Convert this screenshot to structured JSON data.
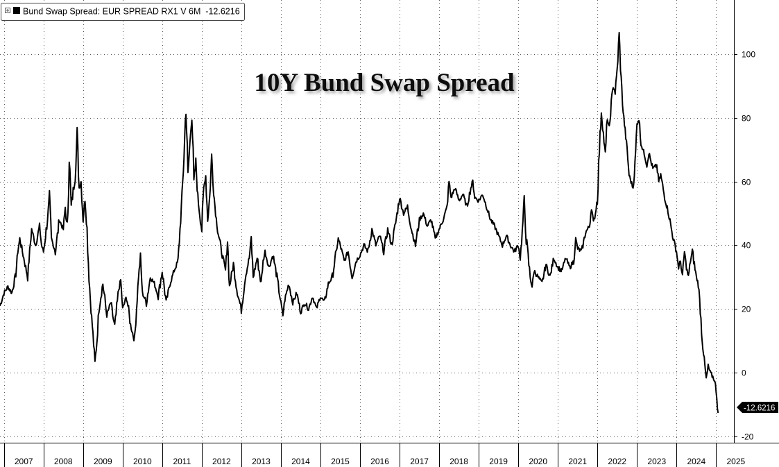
{
  "chart_data": {
    "type": "line",
    "title": "10Y Bund Swap Spread",
    "legend": {
      "expand_icon": "plus-box-icon",
      "swatch_color": "#000000",
      "label": "Bund Swap Spread: EUR SPREAD RX1 V 6M  -12.6216"
    },
    "last_value_label": "-12.6216",
    "x_tick_labels": [
      "2007",
      "2008",
      "2009",
      "2010",
      "2011",
      "2012",
      "2013",
      "2014",
      "2015",
      "2016",
      "2017",
      "2018",
      "2019",
      "2020",
      "2021",
      "2022",
      "2023",
      "2024",
      "2025"
    ],
    "y_ticks": [
      100,
      80,
      60,
      40,
      20,
      0,
      -20
    ],
    "y_tick_labels": [
      "100",
      "80",
      "60",
      "40",
      "20",
      "0",
      "-20"
    ],
    "xlim": [
      2006.9,
      2025.45
    ],
    "ylim": [
      -22,
      117
    ],
    "grid": true,
    "series": [
      {
        "color": "#000000",
        "points": [
          [
            2006.9,
            21
          ],
          [
            2007.0,
            25
          ],
          [
            2007.1,
            27
          ],
          [
            2007.2,
            25
          ],
          [
            2007.3,
            31
          ],
          [
            2007.35,
            38
          ],
          [
            2007.4,
            42
          ],
          [
            2007.5,
            36
          ],
          [
            2007.6,
            30
          ],
          [
            2007.65,
            38
          ],
          [
            2007.7,
            45
          ],
          [
            2007.8,
            40
          ],
          [
            2007.9,
            46
          ],
          [
            2007.95,
            40
          ],
          [
            2008.0,
            38
          ],
          [
            2008.1,
            48
          ],
          [
            2008.15,
            55
          ],
          [
            2008.2,
            42
          ],
          [
            2008.3,
            38
          ],
          [
            2008.4,
            48
          ],
          [
            2008.5,
            45
          ],
          [
            2008.55,
            52
          ],
          [
            2008.6,
            44
          ],
          [
            2008.65,
            68
          ],
          [
            2008.7,
            52
          ],
          [
            2008.8,
            62
          ],
          [
            2008.85,
            75
          ],
          [
            2008.9,
            58
          ],
          [
            2008.95,
            60
          ],
          [
            2009.0,
            48
          ],
          [
            2009.05,
            55
          ],
          [
            2009.1,
            45
          ],
          [
            2009.15,
            30
          ],
          [
            2009.2,
            20
          ],
          [
            2009.25,
            12
          ],
          [
            2009.3,
            3
          ],
          [
            2009.35,
            10
          ],
          [
            2009.4,
            20
          ],
          [
            2009.5,
            28
          ],
          [
            2009.6,
            18
          ],
          [
            2009.7,
            22
          ],
          [
            2009.8,
            14
          ],
          [
            2009.9,
            26
          ],
          [
            2009.95,
            29
          ],
          [
            2010.0,
            20
          ],
          [
            2010.1,
            24
          ],
          [
            2010.2,
            15
          ],
          [
            2010.3,
            10
          ],
          [
            2010.35,
            20
          ],
          [
            2010.4,
            30
          ],
          [
            2010.45,
            36
          ],
          [
            2010.5,
            25
          ],
          [
            2010.6,
            22
          ],
          [
            2010.7,
            30
          ],
          [
            2010.8,
            28
          ],
          [
            2010.9,
            24
          ],
          [
            2011.0,
            32
          ],
          [
            2011.1,
            22
          ],
          [
            2011.2,
            28
          ],
          [
            2011.3,
            32
          ],
          [
            2011.4,
            35
          ],
          [
            2011.45,
            45
          ],
          [
            2011.5,
            55
          ],
          [
            2011.55,
            68
          ],
          [
            2011.6,
            84
          ],
          [
            2011.65,
            62
          ],
          [
            2011.7,
            72
          ],
          [
            2011.75,
            82
          ],
          [
            2011.8,
            60
          ],
          [
            2011.85,
            66
          ],
          [
            2011.9,
            55
          ],
          [
            2012.0,
            45
          ],
          [
            2012.05,
            58
          ],
          [
            2012.1,
            62
          ],
          [
            2012.15,
            48
          ],
          [
            2012.2,
            55
          ],
          [
            2012.25,
            68
          ],
          [
            2012.3,
            57
          ],
          [
            2012.35,
            50
          ],
          [
            2012.4,
            45
          ],
          [
            2012.5,
            38
          ],
          [
            2012.6,
            32
          ],
          [
            2012.65,
            42
          ],
          [
            2012.7,
            27
          ],
          [
            2012.8,
            34
          ],
          [
            2012.9,
            25
          ],
          [
            2013.0,
            20
          ],
          [
            2013.1,
            30
          ],
          [
            2013.2,
            36
          ],
          [
            2013.25,
            42
          ],
          [
            2013.3,
            30
          ],
          [
            2013.4,
            36
          ],
          [
            2013.5,
            28
          ],
          [
            2013.55,
            35
          ],
          [
            2013.6,
            38
          ],
          [
            2013.7,
            33
          ],
          [
            2013.8,
            37
          ],
          [
            2013.9,
            30
          ],
          [
            2014.0,
            22
          ],
          [
            2014.05,
            18
          ],
          [
            2014.1,
            23
          ],
          [
            2014.2,
            28
          ],
          [
            2014.3,
            22
          ],
          [
            2014.4,
            25
          ],
          [
            2014.5,
            19
          ],
          [
            2014.6,
            22
          ],
          [
            2014.7,
            20
          ],
          [
            2014.8,
            24
          ],
          [
            2014.9,
            20
          ],
          [
            2015.0,
            24
          ],
          [
            2015.1,
            22
          ],
          [
            2015.2,
            28
          ],
          [
            2015.3,
            30
          ],
          [
            2015.4,
            38
          ],
          [
            2015.45,
            42
          ],
          [
            2015.5,
            40
          ],
          [
            2015.6,
            35
          ],
          [
            2015.7,
            38
          ],
          [
            2015.8,
            30
          ],
          [
            2015.9,
            35
          ],
          [
            2016.0,
            37
          ],
          [
            2016.1,
            40
          ],
          [
            2016.2,
            38
          ],
          [
            2016.3,
            45
          ],
          [
            2016.4,
            40
          ],
          [
            2016.5,
            43
          ],
          [
            2016.6,
            38
          ],
          [
            2016.7,
            45
          ],
          [
            2016.8,
            40
          ],
          [
            2016.9,
            47
          ],
          [
            2017.0,
            55
          ],
          [
            2017.1,
            50
          ],
          [
            2017.2,
            52
          ],
          [
            2017.3,
            45
          ],
          [
            2017.4,
            40
          ],
          [
            2017.5,
            48
          ],
          [
            2017.6,
            50
          ],
          [
            2017.7,
            46
          ],
          [
            2017.8,
            48
          ],
          [
            2017.9,
            42
          ],
          [
            2018.0,
            45
          ],
          [
            2018.1,
            48
          ],
          [
            2018.2,
            52
          ],
          [
            2018.25,
            60
          ],
          [
            2018.3,
            55
          ],
          [
            2018.4,
            58
          ],
          [
            2018.5,
            54
          ],
          [
            2018.6,
            56
          ],
          [
            2018.7,
            52
          ],
          [
            2018.8,
            58
          ],
          [
            2018.85,
            60
          ],
          [
            2018.9,
            55
          ],
          [
            2019.0,
            54
          ],
          [
            2019.1,
            56
          ],
          [
            2019.2,
            52
          ],
          [
            2019.3,
            48
          ],
          [
            2019.4,
            46
          ],
          [
            2019.5,
            43
          ],
          [
            2019.6,
            40
          ],
          [
            2019.7,
            43
          ],
          [
            2019.8,
            40
          ],
          [
            2019.9,
            38
          ],
          [
            2020.0,
            40
          ],
          [
            2020.05,
            36
          ],
          [
            2020.1,
            44
          ],
          [
            2020.15,
            54
          ],
          [
            2020.2,
            42
          ],
          [
            2020.3,
            30
          ],
          [
            2020.35,
            27
          ],
          [
            2020.4,
            32
          ],
          [
            2020.5,
            30
          ],
          [
            2020.6,
            28
          ],
          [
            2020.7,
            34
          ],
          [
            2020.8,
            30
          ],
          [
            2020.9,
            36
          ],
          [
            2021.0,
            33
          ],
          [
            2021.1,
            32
          ],
          [
            2021.2,
            36
          ],
          [
            2021.3,
            33
          ],
          [
            2021.4,
            35
          ],
          [
            2021.45,
            42
          ],
          [
            2021.5,
            39
          ],
          [
            2021.6,
            38
          ],
          [
            2021.7,
            44
          ],
          [
            2021.8,
            46
          ],
          [
            2021.85,
            52
          ],
          [
            2021.9,
            47
          ],
          [
            2021.95,
            50
          ],
          [
            2022.0,
            55
          ],
          [
            2022.05,
            70
          ],
          [
            2022.1,
            82
          ],
          [
            2022.15,
            75
          ],
          [
            2022.2,
            68
          ],
          [
            2022.25,
            80
          ],
          [
            2022.3,
            76
          ],
          [
            2022.35,
            85
          ],
          [
            2022.4,
            90
          ],
          [
            2022.45,
            88
          ],
          [
            2022.5,
            95
          ],
          [
            2022.55,
            106
          ],
          [
            2022.6,
            92
          ],
          [
            2022.65,
            82
          ],
          [
            2022.7,
            76
          ],
          [
            2022.75,
            70
          ],
          [
            2022.8,
            62
          ],
          [
            2022.9,
            58
          ],
          [
            2022.95,
            65
          ],
          [
            2023.0,
            78
          ],
          [
            2023.05,
            80
          ],
          [
            2023.1,
            72
          ],
          [
            2023.15,
            70
          ],
          [
            2023.2,
            68
          ],
          [
            2023.25,
            65
          ],
          [
            2023.3,
            69
          ],
          [
            2023.4,
            64
          ],
          [
            2023.5,
            65
          ],
          [
            2023.55,
            60
          ],
          [
            2023.6,
            62
          ],
          [
            2023.7,
            55
          ],
          [
            2023.8,
            50
          ],
          [
            2023.9,
            43
          ],
          [
            2024.0,
            38
          ],
          [
            2024.05,
            33
          ],
          [
            2024.1,
            35
          ],
          [
            2024.15,
            30
          ],
          [
            2024.2,
            38
          ],
          [
            2024.25,
            33
          ],
          [
            2024.3,
            30
          ],
          [
            2024.35,
            35
          ],
          [
            2024.4,
            38
          ],
          [
            2024.5,
            30
          ],
          [
            2024.55,
            28
          ],
          [
            2024.6,
            20
          ],
          [
            2024.65,
            10
          ],
          [
            2024.7,
            4
          ],
          [
            2024.75,
            -2
          ],
          [
            2024.8,
            2
          ],
          [
            2024.85,
            0
          ],
          [
            2024.9,
            -1
          ],
          [
            2024.95,
            -2
          ],
          [
            2025.0,
            -5
          ],
          [
            2025.05,
            -12.6216
          ]
        ]
      }
    ]
  }
}
